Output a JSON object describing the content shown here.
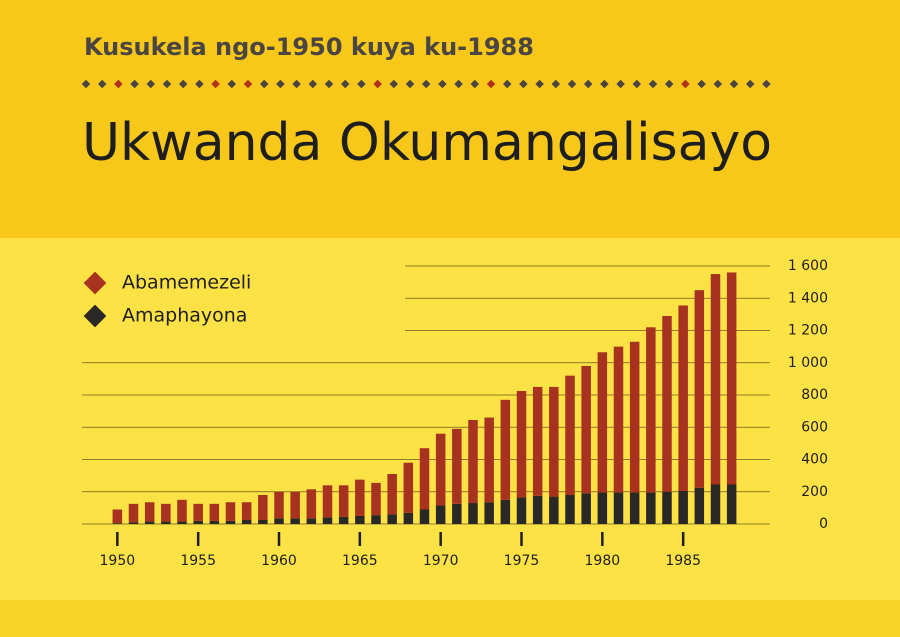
{
  "chart_data": {
    "type": "stacked_bar",
    "subtitle": "Kusukela ngo-1950 kuya ku-1988",
    "title": "Ukwanda Okumangalisayo",
    "x": [
      1950,
      1951,
      1952,
      1953,
      1954,
      1955,
      1956,
      1957,
      1958,
      1959,
      1960,
      1961,
      1962,
      1963,
      1964,
      1965,
      1966,
      1967,
      1968,
      1969,
      1970,
      1971,
      1972,
      1973,
      1974,
      1975,
      1976,
      1977,
      1978,
      1979,
      1980,
      1981,
      1982,
      1983,
      1984,
      1985,
      1986,
      1987,
      1988
    ],
    "series": [
      {
        "name": "Amaphayona",
        "color": "#2a2826",
        "values": [
          5,
          10,
          15,
          15,
          15,
          20,
          20,
          20,
          25,
          25,
          35,
          35,
          35,
          40,
          45,
          50,
          55,
          60,
          70,
          90,
          115,
          125,
          130,
          135,
          150,
          165,
          175,
          170,
          180,
          190,
          195,
          195,
          195,
          195,
          200,
          205,
          225,
          245,
          245
        ]
      },
      {
        "name": "Abamemezeli",
        "color": "#a83220",
        "values": [
          85,
          115,
          120,
          110,
          135,
          105,
          105,
          115,
          110,
          155,
          165,
          165,
          180,
          200,
          195,
          225,
          200,
          250,
          310,
          380,
          445,
          465,
          515,
          525,
          620,
          660,
          675,
          680,
          740,
          790,
          870,
          905,
          935,
          1025,
          1090,
          1150,
          1225,
          1305,
          1315
        ]
      }
    ],
    "xlim": [
      1948,
      1990
    ],
    "xticks": [
      1950,
      1955,
      1960,
      1965,
      1970,
      1975,
      1980,
      1985
    ],
    "ylim": [
      0,
      1600
    ],
    "yticks": [
      0,
      200,
      400,
      600,
      800,
      {
        "value": 1000,
        "label": "1 000"
      },
      {
        "value": 1200,
        "label": "1 200"
      },
      {
        "value": 1400,
        "label": "1 400"
      },
      {
        "value": 1600,
        "label": "1 600"
      }
    ],
    "grid": true,
    "legend": "upper left"
  }
}
